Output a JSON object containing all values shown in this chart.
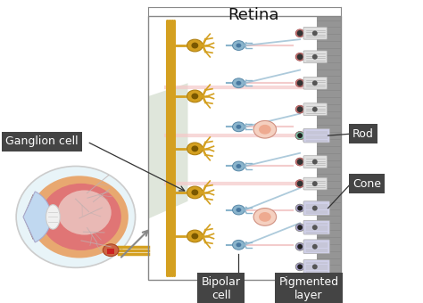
{
  "title": "Retina",
  "background_color": "#ffffff",
  "labels": {
    "ganglion_cell": "Ganglion cell",
    "bipolar_cell": "Bipolar\ncell",
    "pigmented_layer": "Pigmented\nlayer",
    "rod": "Rod",
    "cone": "Cone",
    "retina": "Retina"
  },
  "label_box_color": "#444444",
  "label_text_color": "#ffffff",
  "ganglion_color": "#d4a020",
  "bipolar_color": "#8ab4cc",
  "rod_color": "#d07878",
  "cone_color": "#7dc8a8",
  "cone2_color": "#a8a0cc",
  "pink_cell_color": "#f0b8b8",
  "amacrine_color": "#f5a8a0",
  "retina_wall_color": "#909090",
  "eye_sclera": "#d8eef8",
  "eye_choroid": "#e8aa80",
  "eye_retina": "#e07878",
  "eye_vitreous": "#f0ece0",
  "figsize": [
    4.74,
    3.4
  ],
  "dpi": 100
}
